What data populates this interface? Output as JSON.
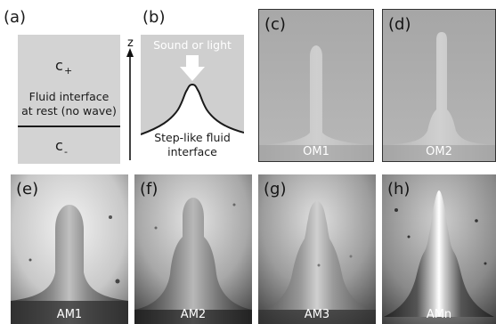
{
  "panels": {
    "a": {
      "label": "(a)",
      "upper_fluid": "c",
      "upper_sub": "+",
      "lower_fluid": "c",
      "lower_sub": "-",
      "text_line1": "Fluid interface",
      "text_line2": "at rest (no wave)"
    },
    "axis_label": "z",
    "b": {
      "label": "(b)",
      "arrow_text": "Sound or light",
      "text_line1": "Step-like fluid",
      "text_line2": "interface"
    },
    "c": {
      "label": "(c)",
      "caption": "OM1"
    },
    "d": {
      "label": "(d)",
      "caption": "OM2"
    },
    "e": {
      "label": "(e)",
      "caption": "AM1"
    },
    "f": {
      "label": "(f)",
      "caption": "AM2"
    },
    "g": {
      "label": "(g)",
      "caption": "AM3"
    },
    "h": {
      "label": "(h)",
      "caption": "AMn"
    }
  },
  "colors": {
    "panel_a_fill": "#d3d3d3",
    "panel_b_fill": "#cfcfcf",
    "interface_line": "#1a1a1a"
  }
}
